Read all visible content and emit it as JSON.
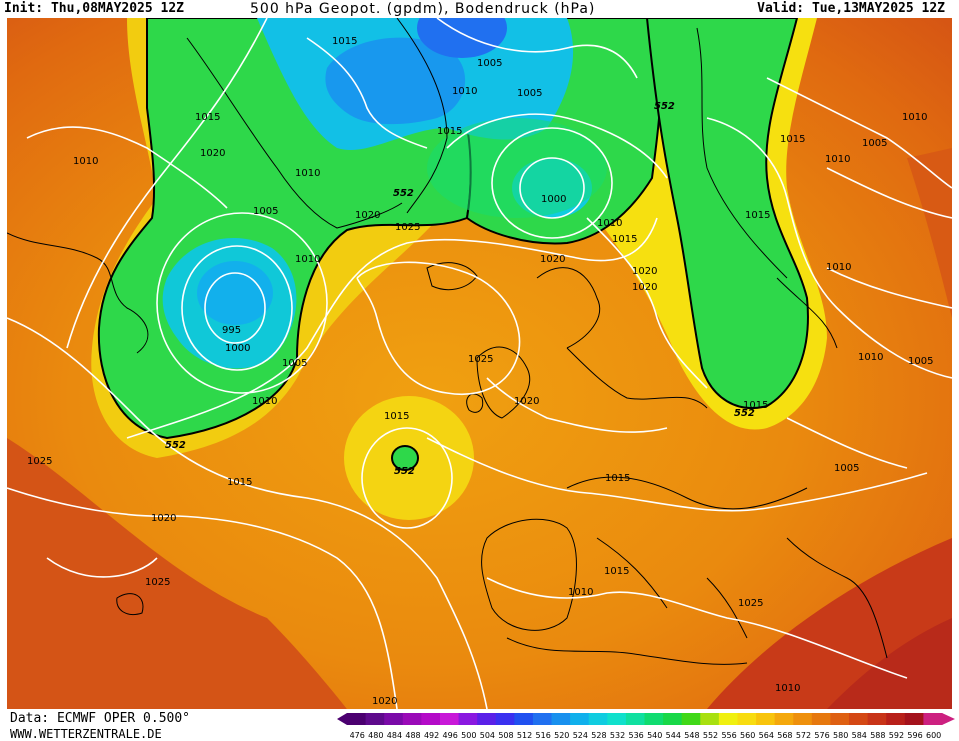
{
  "header": {
    "init": "Init: Thu,08MAY2025 12Z",
    "title": "500 hPa Geopot. (gpdm), Bodendruck (hPa)",
    "valid": "Valid: Tue,13MAY2025 12Z"
  },
  "footer": {
    "data_source": "Data: ECMWF OPER 0.500°",
    "url": "WWW.WETTERZENTRALE.DE"
  },
  "legend": {
    "values": [
      "476",
      "480",
      "484",
      "488",
      "492",
      "496",
      "500",
      "504",
      "508",
      "512",
      "516",
      "520",
      "524",
      "528",
      "532",
      "536",
      "540",
      "544",
      "548",
      "552",
      "556",
      "560",
      "564",
      "568",
      "572",
      "576",
      "580",
      "584",
      "588",
      "592",
      "596",
      "600"
    ],
    "colors": [
      "#4b0070",
      "#5e0a8c",
      "#7a0aa8",
      "#9a0ab8",
      "#b40ac8",
      "#c818d8",
      "#8a18e0",
      "#5a20e8",
      "#3a30f0",
      "#2050f0",
      "#2070f0",
      "#1890ee",
      "#10b0ec",
      "#10cce0",
      "#10e0cc",
      "#10e0a0",
      "#10dc70",
      "#18d848",
      "#40d818",
      "#a8e010",
      "#f0f010",
      "#f8dc10",
      "#f8c40c",
      "#f4a80c",
      "#ee900c",
      "#e6780e",
      "#de6012",
      "#d44814",
      "#c83418",
      "#b8201a",
      "#a4121c",
      "#cc2080"
    ]
  },
  "isobar_labels": [
    "1015",
    "1005",
    "1010",
    "1005",
    "1015",
    "1010",
    "1015",
    "1010",
    "1020",
    "1015",
    "1010",
    "1000",
    "1010",
    "1005",
    "1020",
    "1025",
    "1005",
    "1010",
    "1015",
    "1020",
    "1015",
    "1010",
    "1020",
    "1010",
    "1025",
    "995",
    "1000",
    "1010",
    "1005",
    "1025",
    "1020",
    "1015",
    "1010",
    "1005",
    "1005",
    "1015",
    "1015",
    "1025",
    "1020",
    "1015",
    "1020",
    "1010",
    "1015",
    "1025",
    "1010",
    "1020"
  ],
  "geopotential_labels": [
    "552",
    "552",
    "552",
    "552",
    "552"
  ]
}
